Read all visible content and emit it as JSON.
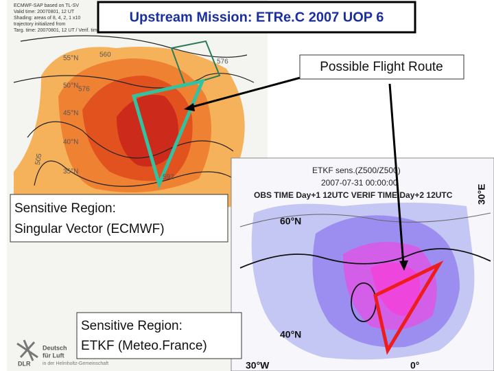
{
  "title": "Upstream Mission: ETRe.C 2007 UOP 6",
  "callouts": {
    "flight_route": "Possible Flight Route",
    "singular_vector": [
      "Sensitive Region:",
      "Singular Vector (ECMWF)"
    ],
    "etkf": [
      "Sensitive Region:",
      "ETKF (Meteo.France)"
    ]
  },
  "left_map": {
    "header": [
      "ECMWF-SAP based on TL-SV",
      "Valid time: 20070801, 12 UT",
      "Shading: areas of 8, 4, 2, 1 x10",
      "trajectory initialized from",
      "Targ. time: 20070801, 12 UT / Verif. time: 20070802, 12 UT (opt: 24h)"
    ],
    "lat_labels": [
      "55°N",
      "50°N",
      "45°N",
      "40°N",
      "35°N"
    ],
    "contour_labels": [
      "560",
      "576",
      "576",
      "592",
      "505"
    ]
  },
  "right_map": {
    "title_lines": [
      "ETKF sens.(Z500/Z500)",
      "2007-07-31 00:00:00",
      "OBS TIME Day+1 12UTC VERIF TIME Day+2 12UTC"
    ],
    "lat_labels": [
      "60°N",
      "40°N"
    ],
    "lon_labels": [
      "30°W",
      "0°",
      "30°E"
    ]
  },
  "logo": {
    "acronym": "DLR",
    "lines": [
      "Deutsch",
      "für Luft",
      "in der Helmholtz-Gemeinschaft"
    ]
  }
}
